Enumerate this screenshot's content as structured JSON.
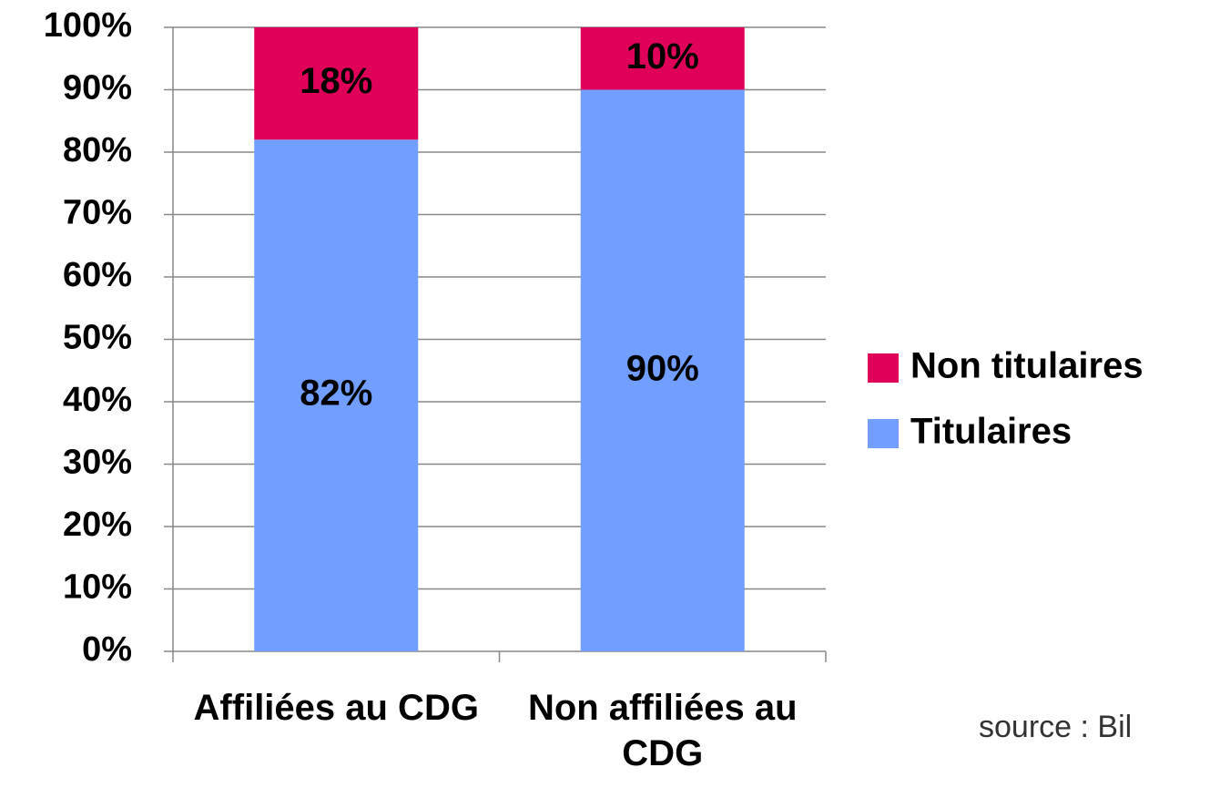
{
  "chart_data": {
    "type": "stacked_bar",
    "categories": [
      "Affiliées au CDG",
      "Non affiliées au CDG"
    ],
    "series": [
      {
        "name": "Titulaires",
        "color": "#729fff",
        "values": [
          82,
          90
        ],
        "value_labels": [
          "82%",
          "90%"
        ]
      },
      {
        "name": "Non titulaires",
        "color": "#e0005a",
        "values": [
          18,
          10
        ],
        "value_labels": [
          "18%",
          "10%"
        ]
      }
    ],
    "ylim": [
      0,
      100
    ],
    "yticks": [
      {
        "value": 0,
        "label": "0%"
      },
      {
        "value": 10,
        "label": "10%"
      },
      {
        "value": 20,
        "label": "20%"
      },
      {
        "value": 30,
        "label": "30%"
      },
      {
        "value": 40,
        "label": "40%"
      },
      {
        "value": 50,
        "label": "50%"
      },
      {
        "value": 60,
        "label": "60%"
      },
      {
        "value": 70,
        "label": "70%"
      },
      {
        "value": 80,
        "label": "80%"
      },
      {
        "value": 90,
        "label": "90%"
      },
      {
        "value": 100,
        "label": "100%"
      }
    ],
    "grid": true,
    "legend": "right",
    "source": "source : Bil"
  }
}
